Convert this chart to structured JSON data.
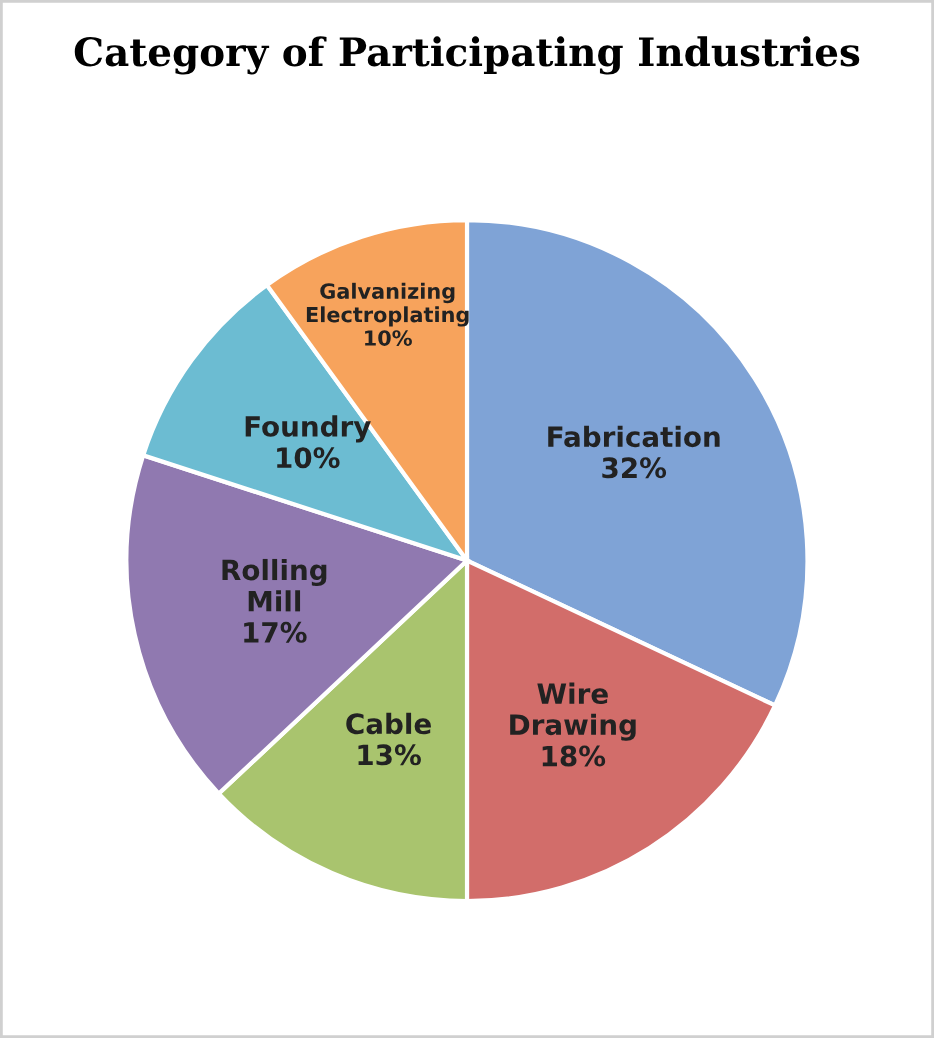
{
  "chart_data": {
    "type": "pie",
    "title": "Category of Participating Industries",
    "categories": [
      "Fabrication",
      "Wire\nDrawing",
      "Cable",
      "Rolling\nMill",
      "Foundry",
      "Galvanizing\nElectroplating"
    ],
    "values": [
      32,
      18,
      13,
      17,
      10,
      10
    ],
    "colors": [
      "#7fa3d6",
      "#d26d6a",
      "#a9c46e",
      "#9079b0",
      "#6cbcd2",
      "#f7a35c"
    ],
    "value_labels": [
      "32%",
      "18%",
      "13%",
      "17%",
      "10%",
      "10%"
    ]
  }
}
